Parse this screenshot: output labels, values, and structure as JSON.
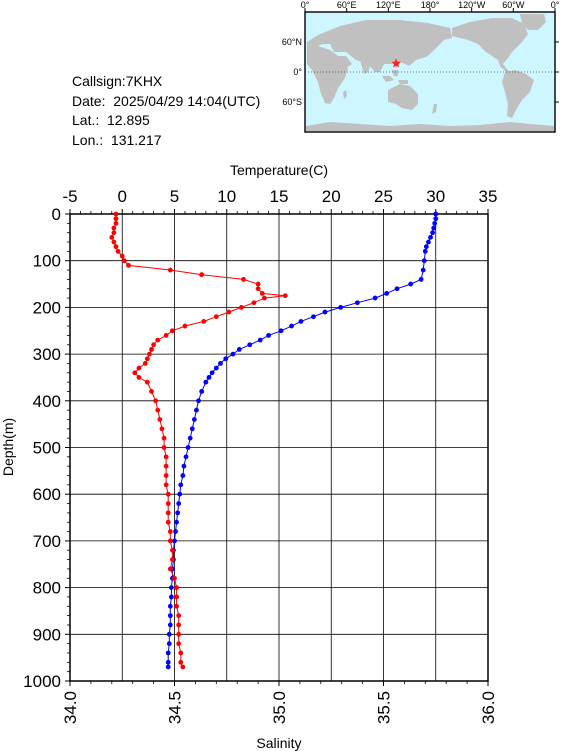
{
  "info": {
    "callsign": "Callsign:7KHX",
    "date": "Date:  2025/04/29 14:04(UTC)",
    "lat": "Lat.:  12.895",
    "lon": "Lon.:  131.217"
  },
  "map": {
    "lon_labels": [
      "0°",
      "60°E",
      "120°E",
      "180°",
      "120°W",
      "60°W",
      "0°"
    ],
    "lat_labels": [
      "60°N",
      "0°",
      "60°S"
    ],
    "station": {
      "lon": 131.217,
      "lat": 12.895
    },
    "colors": {
      "ocean": "#cdf6ff",
      "land": "#c0c0c0",
      "marker": "#ff2020"
    }
  },
  "chart_data": {
    "type": "scatter",
    "title": "",
    "xlabel_top": "Temperature(C)",
    "xlabel_bottom": "Salinity",
    "ylabel": "Depth(m)",
    "temperature_range": [
      -5,
      35
    ],
    "salinity_range": [
      34.0,
      36.0
    ],
    "depth_range": [
      0,
      1000
    ],
    "temperature_ticks": [
      "-5",
      "0",
      "5",
      "10",
      "15",
      "20",
      "25",
      "30",
      "35"
    ],
    "salinity_ticks": [
      "34.0",
      "34.5",
      "35.0",
      "35.5",
      "36.0"
    ],
    "depth_ticks": [
      "0",
      "100",
      "200",
      "300",
      "400",
      "500",
      "600",
      "700",
      "800",
      "900",
      "1000"
    ],
    "grid": true,
    "series": [
      {
        "color": "#0000ff",
        "axis": "temperature",
        "points": [
          [
            30.0,
            0
          ],
          [
            30.0,
            10
          ],
          [
            29.9,
            20
          ],
          [
            29.8,
            30
          ],
          [
            29.7,
            40
          ],
          [
            29.5,
            50
          ],
          [
            29.3,
            60
          ],
          [
            29.1,
            70
          ],
          [
            29.0,
            80
          ],
          [
            28.9,
            100
          ],
          [
            28.8,
            120
          ],
          [
            28.6,
            140
          ],
          [
            27.6,
            150
          ],
          [
            26.3,
            160
          ],
          [
            25.3,
            170
          ],
          [
            24.2,
            180
          ],
          [
            22.5,
            190
          ],
          [
            20.9,
            200
          ],
          [
            19.4,
            210
          ],
          [
            18.3,
            220
          ],
          [
            17.1,
            230
          ],
          [
            16.2,
            240
          ],
          [
            15.2,
            250
          ],
          [
            14.0,
            260
          ],
          [
            13.2,
            270
          ],
          [
            12.2,
            280
          ],
          [
            11.2,
            290
          ],
          [
            10.6,
            300
          ],
          [
            9.9,
            310
          ],
          [
            9.4,
            320
          ],
          [
            9.0,
            330
          ],
          [
            8.6,
            340
          ],
          [
            8.3,
            350
          ],
          [
            8.0,
            360
          ],
          [
            7.6,
            380
          ],
          [
            7.3,
            400
          ],
          [
            7.1,
            420
          ],
          [
            6.9,
            440
          ],
          [
            6.7,
            460
          ],
          [
            6.5,
            480
          ],
          [
            6.3,
            500
          ],
          [
            6.1,
            520
          ],
          [
            5.9,
            540
          ],
          [
            5.8,
            560
          ],
          [
            5.6,
            580
          ],
          [
            5.5,
            600
          ],
          [
            5.4,
            620
          ],
          [
            5.3,
            640
          ],
          [
            5.2,
            660
          ],
          [
            5.1,
            680
          ],
          [
            5.0,
            700
          ],
          [
            4.9,
            720
          ],
          [
            4.9,
            740
          ],
          [
            4.8,
            760
          ],
          [
            4.8,
            780
          ],
          [
            4.7,
            800
          ],
          [
            4.7,
            820
          ],
          [
            4.6,
            840
          ],
          [
            4.6,
            860
          ],
          [
            4.6,
            880
          ],
          [
            4.5,
            900
          ],
          [
            4.5,
            920
          ],
          [
            4.4,
            940
          ],
          [
            4.4,
            960
          ],
          [
            4.4,
            970
          ]
        ]
      },
      {
        "color": "#ff0000",
        "axis": "salinity",
        "points": [
          [
            34.22,
            0
          ],
          [
            34.22,
            10
          ],
          [
            34.22,
            20
          ],
          [
            34.21,
            30
          ],
          [
            34.21,
            40
          ],
          [
            34.2,
            50
          ],
          [
            34.21,
            60
          ],
          [
            34.22,
            70
          ],
          [
            34.23,
            80
          ],
          [
            34.25,
            90
          ],
          [
            34.26,
            100
          ],
          [
            34.28,
            110
          ],
          [
            34.48,
            120
          ],
          [
            34.63,
            130
          ],
          [
            34.83,
            140
          ],
          [
            34.9,
            150
          ],
          [
            34.9,
            160
          ],
          [
            34.92,
            170
          ],
          [
            35.03,
            175
          ],
          [
            34.93,
            180
          ],
          [
            34.88,
            190
          ],
          [
            34.82,
            200
          ],
          [
            34.76,
            210
          ],
          [
            34.7,
            220
          ],
          [
            34.64,
            230
          ],
          [
            34.55,
            240
          ],
          [
            34.49,
            250
          ],
          [
            34.46,
            260
          ],
          [
            34.42,
            270
          ],
          [
            34.4,
            280
          ],
          [
            34.39,
            290
          ],
          [
            34.38,
            300
          ],
          [
            34.37,
            310
          ],
          [
            34.36,
            320
          ],
          [
            34.33,
            330
          ],
          [
            34.31,
            340
          ],
          [
            34.33,
            350
          ],
          [
            34.37,
            360
          ],
          [
            34.39,
            380
          ],
          [
            34.41,
            400
          ],
          [
            34.42,
            420
          ],
          [
            34.43,
            440
          ],
          [
            34.44,
            460
          ],
          [
            34.45,
            480
          ],
          [
            34.45,
            500
          ],
          [
            34.46,
            520
          ],
          [
            34.46,
            540
          ],
          [
            34.46,
            560
          ],
          [
            34.46,
            580
          ],
          [
            34.47,
            600
          ],
          [
            34.47,
            620
          ],
          [
            34.47,
            640
          ],
          [
            34.47,
            660
          ],
          [
            34.48,
            680
          ],
          [
            34.48,
            700
          ],
          [
            34.49,
            720
          ],
          [
            34.49,
            740
          ],
          [
            34.48,
            760
          ],
          [
            34.5,
            780
          ],
          [
            34.51,
            800
          ],
          [
            34.51,
            820
          ],
          [
            34.51,
            840
          ],
          [
            34.52,
            860
          ],
          [
            34.52,
            880
          ],
          [
            34.52,
            900
          ],
          [
            34.52,
            920
          ],
          [
            34.53,
            940
          ],
          [
            34.53,
            960
          ],
          [
            34.54,
            970
          ]
        ]
      }
    ]
  }
}
